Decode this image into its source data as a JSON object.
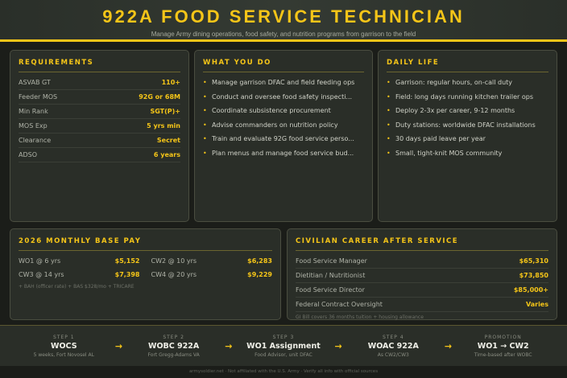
{
  "header": {
    "title": "922A FOOD SERVICE TECHNICIAN",
    "subtitle": "Manage Army dining operations, food safety, and nutrition programs from garrison to the field"
  },
  "requirements": {
    "title": "REQUIREMENTS",
    "rows": [
      {
        "k": "ASVAB GT",
        "v": "110+"
      },
      {
        "k": "Feeder MOS",
        "v": "92G or 68M"
      },
      {
        "k": "Min Rank",
        "v": "SGT(P)+"
      },
      {
        "k": "MOS Exp",
        "v": "5 yrs min"
      },
      {
        "k": "Clearance",
        "v": "Secret"
      },
      {
        "k": "ADSO",
        "v": "6 years"
      }
    ]
  },
  "what": {
    "title": "WHAT YOU DO",
    "items": [
      "Manage garrison DFAC and field feeding ops",
      "Conduct and oversee food safety inspecti...",
      "Coordinate subsistence procurement",
      "Advise commanders on nutrition policy",
      "Train and evaluate 92G food service perso...",
      "Plan menus and manage food service bud..."
    ]
  },
  "daily": {
    "title": "DAILY LIFE",
    "items": [
      "Garrison: regular hours, on-call duty",
      "Field: long days running kitchen trailer ops",
      "Deploy 2-3x per career, 9-12 months",
      "Duty stations: worldwide DFAC installations",
      "30 days paid leave per year",
      "Small, tight-knit MOS community"
    ]
  },
  "pay": {
    "title": "2026 MONTHLY BASE PAY",
    "rows": [
      {
        "k": "WO1 @ 6 yrs",
        "v": "$5,152"
      },
      {
        "k": "CW2 @ 10 yrs",
        "v": "$6,283"
      },
      {
        "k": "CW3 @ 14 yrs",
        "v": "$7,398"
      },
      {
        "k": "CW4 @ 20 yrs",
        "v": "$9,229"
      }
    ],
    "note": "+ BAH (officer rate) + BAS $328/mo + TRICARE"
  },
  "civilian": {
    "title": "CIVILIAN CAREER AFTER SERVICE",
    "rows": [
      {
        "k": "Food Service Manager",
        "v": "$65,310"
      },
      {
        "k": "Dietitian / Nutritionist",
        "v": "$73,850"
      },
      {
        "k": "Food Service Director",
        "v": "$85,000+"
      },
      {
        "k": "Federal Contract Oversight",
        "v": "Varies"
      }
    ],
    "note": "GI Bill covers 36 months tuition + housing allowance"
  },
  "steps": [
    {
      "l": "STEP 1",
      "n": "WOCS",
      "d": "5 weeks, Fort Novosel AL"
    },
    {
      "l": "STEP 2",
      "n": "WOBC 922A",
      "d": "Fort Gregg-Adams VA"
    },
    {
      "l": "STEP 3",
      "n": "WO1 Assignment",
      "d": "Food Advisor, unit DFAC"
    },
    {
      "l": "STEP 4",
      "n": "WOAC 922A",
      "d": "As CW2/CW3"
    },
    {
      "l": "PROMOTION",
      "n": "WO1 → CW2",
      "d": "Time-based after WOBC"
    }
  ],
  "arrow": "→",
  "footer": "armysoldier.net · Not affiliated with the U.S. Army · Verify all info with official sources",
  "colors": {
    "accent": "#f5c518",
    "background": "#1b1d19",
    "card": "#2a2e28"
  }
}
